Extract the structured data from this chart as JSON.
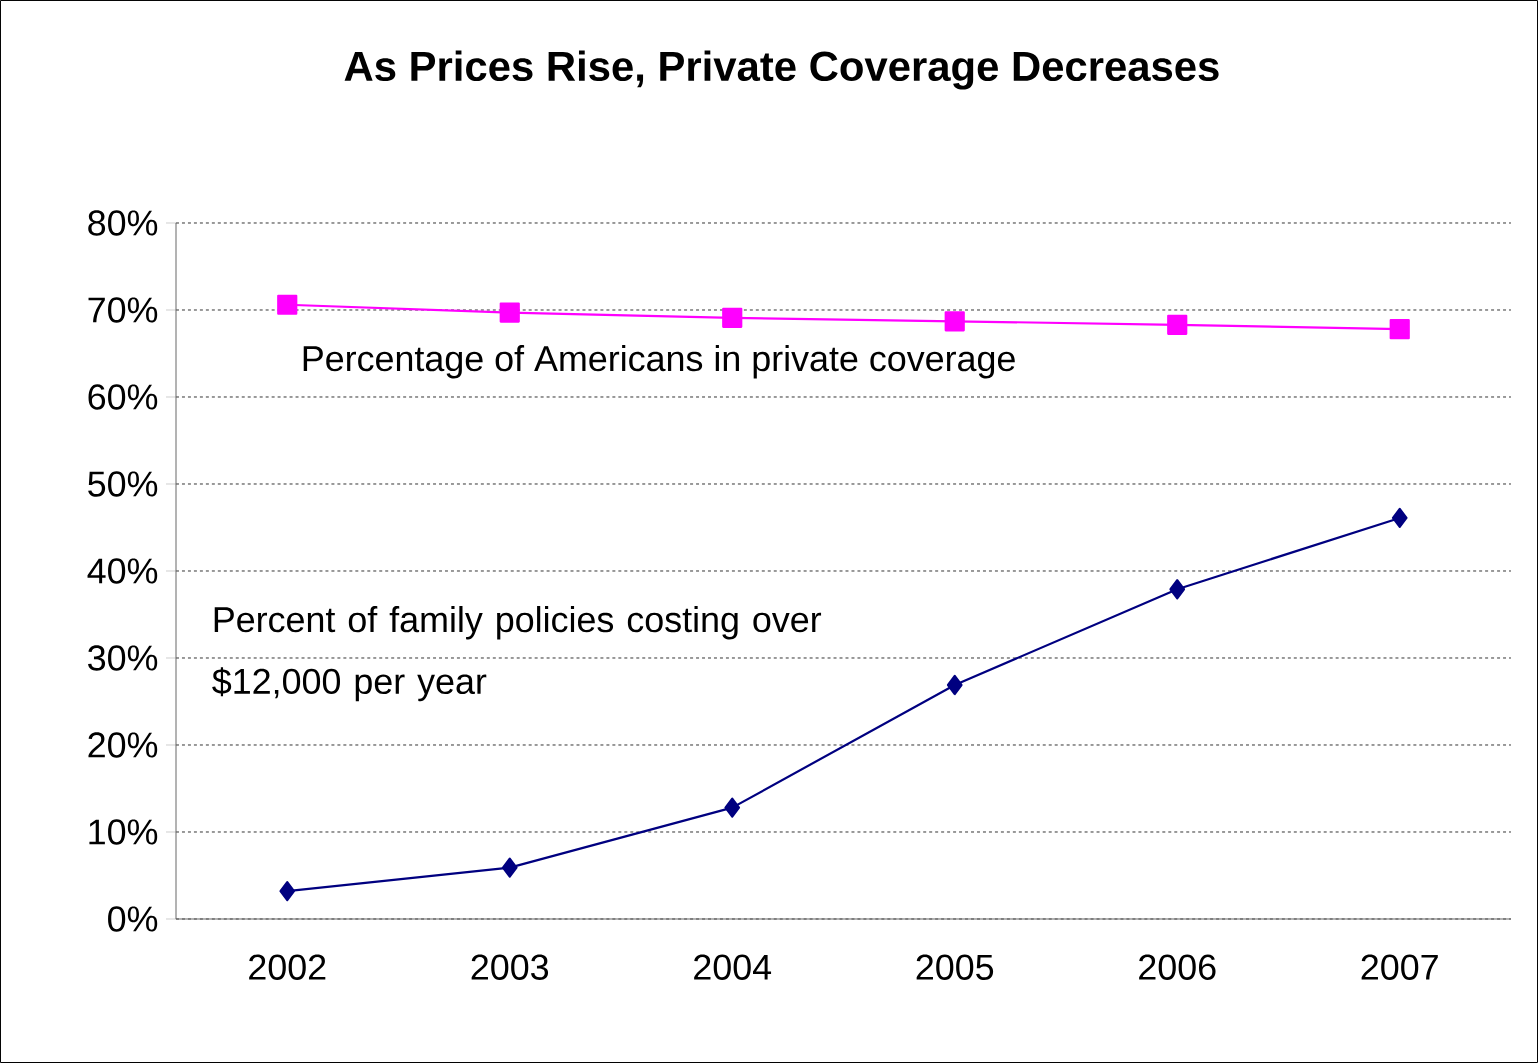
{
  "chart_data": {
    "type": "line",
    "title": "As Prices Rise, Private Coverage Decreases",
    "categories": [
      "2002",
      "2003",
      "2004",
      "2005",
      "2006",
      "2007"
    ],
    "series": [
      {
        "name": "Percentage of Americans in private coverage",
        "color": "#ff00ff",
        "marker": "square",
        "values": [
          70.6,
          69.7,
          69.1,
          68.7,
          68.3,
          67.8
        ]
      },
      {
        "name": "Percent of family policies costing over $12,000 per year",
        "color": "#000080",
        "marker": "diamond",
        "values": [
          3.2,
          5.9,
          12.8,
          26.9,
          37.9,
          46.1
        ]
      }
    ],
    "ylim": [
      0,
      80
    ],
    "yticks": [
      {
        "value": 0,
        "label": "0%"
      },
      {
        "value": 10,
        "label": "10%"
      },
      {
        "value": 20,
        "label": "20%"
      },
      {
        "value": 30,
        "label": "30%"
      },
      {
        "value": 40,
        "label": "40%"
      },
      {
        "value": 50,
        "label": "50%"
      },
      {
        "value": 60,
        "label": "60%"
      },
      {
        "value": 70,
        "label": "70%"
      },
      {
        "value": 80,
        "label": "80%"
      }
    ],
    "grid": "y",
    "line_style": "solid"
  }
}
